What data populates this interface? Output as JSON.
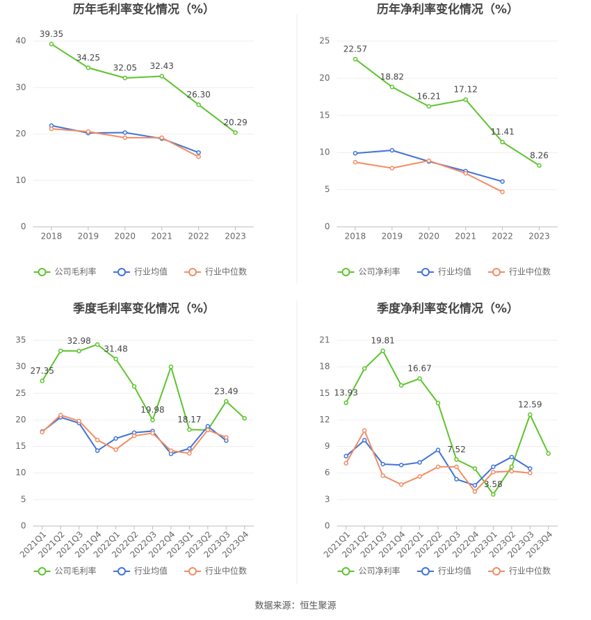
{
  "chart_data": [
    {
      "type": "line",
      "title": "历年毛利率变化情况（%）",
      "categories": [
        "2018",
        "2019",
        "2020",
        "2021",
        "2022",
        "2023"
      ],
      "series": [
        {
          "name": "公司毛利率",
          "color": "#5bc42b",
          "values": [
            39.35,
            34.25,
            32.05,
            32.43,
            26.3,
            20.29
          ],
          "value_labels": [
            "39.35",
            "34.25",
            "32.05",
            "32.43",
            "26.30",
            "20.29"
          ]
        },
        {
          "name": "行业均值",
          "color": "#3f72d9",
          "values": [
            21.8,
            20.2,
            20.3,
            19.0,
            16.0,
            null
          ]
        },
        {
          "name": "行业中位数",
          "color": "#f28c62",
          "values": [
            21.1,
            20.5,
            19.2,
            19.2,
            15.1,
            null
          ]
        }
      ],
      "ylim": [
        0,
        40
      ],
      "yticks": [
        0,
        10,
        20,
        30,
        40
      ],
      "grid": true
    },
    {
      "type": "line",
      "title": "历年净利率变化情况（%）",
      "categories": [
        "2018",
        "2019",
        "2020",
        "2021",
        "2022",
        "2023"
      ],
      "series": [
        {
          "name": "公司净利率",
          "color": "#5bc42b",
          "values": [
            22.57,
            18.82,
            16.21,
            17.12,
            11.41,
            8.26
          ]
        },
        {
          "name": "行业均值",
          "color": "#3f72d9",
          "values": [
            9.9,
            10.3,
            8.8,
            7.5,
            6.1,
            null
          ]
        },
        {
          "name": "行业中位数",
          "color": "#f28c62",
          "values": [
            8.7,
            7.9,
            8.9,
            7.2,
            4.7,
            null
          ]
        }
      ],
      "ylim": [
        0,
        25
      ],
      "yticks": [
        0,
        5,
        10,
        15,
        20,
        25
      ],
      "grid": true
    },
    {
      "type": "line",
      "title": "季度毛利率变化情况（%）",
      "categories": [
        "2021Q1",
        "2021Q2",
        "2021Q3",
        "2021Q4",
        "2022Q1",
        "2022Q2",
        "2022Q3",
        "2022Q4",
        "2023Q1",
        "2023Q2",
        "2023Q3",
        "2023Q4"
      ],
      "series": [
        {
          "name": "公司毛利率",
          "color": "#5bc42b",
          "values": [
            27.35,
            33.0,
            32.98,
            34.2,
            31.48,
            26.3,
            19.98,
            30.0,
            18.17,
            18.1,
            23.49,
            20.3
          ],
          "value_labels": [
            "27.35",
            null,
            "32.98",
            null,
            "31.48",
            null,
            "19.98",
            null,
            "18.17",
            null,
            "23.49",
            null
          ]
        },
        {
          "name": "行业均值",
          "color": "#3f72d9",
          "values": [
            17.8,
            20.5,
            19.4,
            14.2,
            16.5,
            17.6,
            17.9,
            13.6,
            14.6,
            18.8,
            16.1,
            null
          ]
        },
        {
          "name": "行业中位数",
          "color": "#f28c62",
          "values": [
            17.7,
            20.9,
            19.8,
            16.2,
            14.4,
            17.0,
            17.5,
            14.2,
            13.7,
            18.1,
            16.7,
            null
          ]
        }
      ],
      "ylim": [
        0,
        35
      ],
      "yticks": [
        0,
        5,
        10,
        15,
        20,
        25,
        30,
        35
      ],
      "grid": true
    },
    {
      "type": "line",
      "title": "季度净利率变化情况（%）",
      "categories": [
        "2021Q1",
        "2021Q2",
        "2021Q3",
        "2021Q4",
        "2022Q1",
        "2022Q2",
        "2022Q3",
        "2022Q4",
        "2023Q1",
        "2023Q2",
        "2023Q3",
        "2023Q4"
      ],
      "series": [
        {
          "name": "公司净利率",
          "color": "#5bc42b",
          "values": [
            13.93,
            17.8,
            19.81,
            15.9,
            16.67,
            13.9,
            7.52,
            6.5,
            3.58,
            6.7,
            12.59,
            8.2
          ],
          "value_labels": [
            "13.93",
            null,
            "19.81",
            null,
            "16.67",
            null,
            "7.52",
            null,
            "3.58",
            null,
            "12.59",
            null
          ]
        },
        {
          "name": "行业均值",
          "color": "#3f72d9",
          "values": [
            7.9,
            9.7,
            7.0,
            6.9,
            7.2,
            8.6,
            5.3,
            4.6,
            6.7,
            7.8,
            6.5,
            null
          ]
        },
        {
          "name": "行业中位数",
          "color": "#f28c62",
          "values": [
            7.1,
            10.8,
            5.7,
            4.7,
            5.6,
            6.7,
            6.7,
            3.9,
            6.1,
            6.2,
            6.0,
            null
          ]
        }
      ],
      "ylim": [
        0,
        21
      ],
      "yticks": [
        0,
        3,
        6,
        9,
        12,
        15,
        18,
        21
      ],
      "grid": true
    }
  ],
  "source": "数据来源：恒生聚源"
}
